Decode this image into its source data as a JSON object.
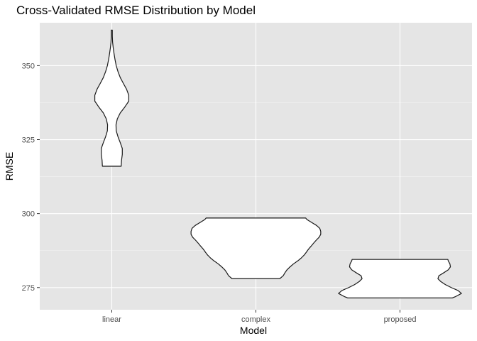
{
  "chart_data": {
    "type": "violin",
    "title": "Cross-Validated RMSE Distribution by Model",
    "xlabel": "Model",
    "ylabel": "RMSE",
    "categories": [
      "linear",
      "complex",
      "proposed"
    ],
    "ylim": [
      267.5,
      364.5
    ],
    "yticks": [
      275,
      300,
      325,
      350
    ],
    "yminor": [
      287.5,
      312.5,
      337.5
    ],
    "grid": true,
    "fill_color": "#ffffff",
    "outline_color": "#1a1a1a",
    "panel_color": "#e5e5e5",
    "violins": [
      {
        "category": "linear",
        "profile": [
          [
            316.0,
            0.145
          ],
          [
            318.0,
            0.15
          ],
          [
            320.0,
            0.162
          ],
          [
            322.0,
            0.162
          ],
          [
            324.0,
            0.13
          ],
          [
            326.0,
            0.095
          ],
          [
            328.0,
            0.068
          ],
          [
            330.0,
            0.065
          ],
          [
            332.0,
            0.085
          ],
          [
            334.0,
            0.13
          ],
          [
            336.0,
            0.2
          ],
          [
            338.0,
            0.262
          ],
          [
            340.0,
            0.262
          ],
          [
            342.0,
            0.228
          ],
          [
            344.0,
            0.178
          ],
          [
            346.0,
            0.13
          ],
          [
            348.0,
            0.095
          ],
          [
            350.0,
            0.068
          ],
          [
            352.0,
            0.05
          ],
          [
            354.0,
            0.035
          ],
          [
            356.0,
            0.022
          ],
          [
            358.0,
            0.012
          ],
          [
            360.0,
            0.008
          ],
          [
            362.0,
            0.008
          ]
        ]
      },
      {
        "category": "complex",
        "profile": [
          [
            278.0,
            0.368
          ],
          [
            279.0,
            0.422
          ],
          [
            280.0,
            0.448
          ],
          [
            281.0,
            0.48
          ],
          [
            282.0,
            0.527
          ],
          [
            283.0,
            0.58
          ],
          [
            284.0,
            0.645
          ],
          [
            285.0,
            0.7
          ],
          [
            286.0,
            0.745
          ],
          [
            287.0,
            0.78
          ],
          [
            288.0,
            0.812
          ],
          [
            289.0,
            0.852
          ],
          [
            290.0,
            0.89
          ],
          [
            291.0,
            0.93
          ],
          [
            292.0,
            0.975
          ],
          [
            293.0,
            1.0
          ],
          [
            294.0,
            1.0
          ],
          [
            295.0,
            0.985
          ],
          [
            296.0,
            0.935
          ],
          [
            297.0,
            0.86
          ],
          [
            298.0,
            0.787
          ],
          [
            298.5,
            0.768
          ]
        ]
      },
      {
        "category": "proposed",
        "profile": [
          [
            271.5,
            0.808
          ],
          [
            272.0,
            0.862
          ],
          [
            273.0,
            0.948
          ],
          [
            274.0,
            0.895
          ],
          [
            275.0,
            0.79
          ],
          [
            276.0,
            0.7
          ],
          [
            277.0,
            0.63
          ],
          [
            278.0,
            0.585
          ],
          [
            279.0,
            0.6
          ],
          [
            280.0,
            0.675
          ],
          [
            281.0,
            0.745
          ],
          [
            282.0,
            0.778
          ],
          [
            283.0,
            0.77
          ],
          [
            284.0,
            0.745
          ],
          [
            284.5,
            0.738
          ]
        ]
      }
    ]
  }
}
